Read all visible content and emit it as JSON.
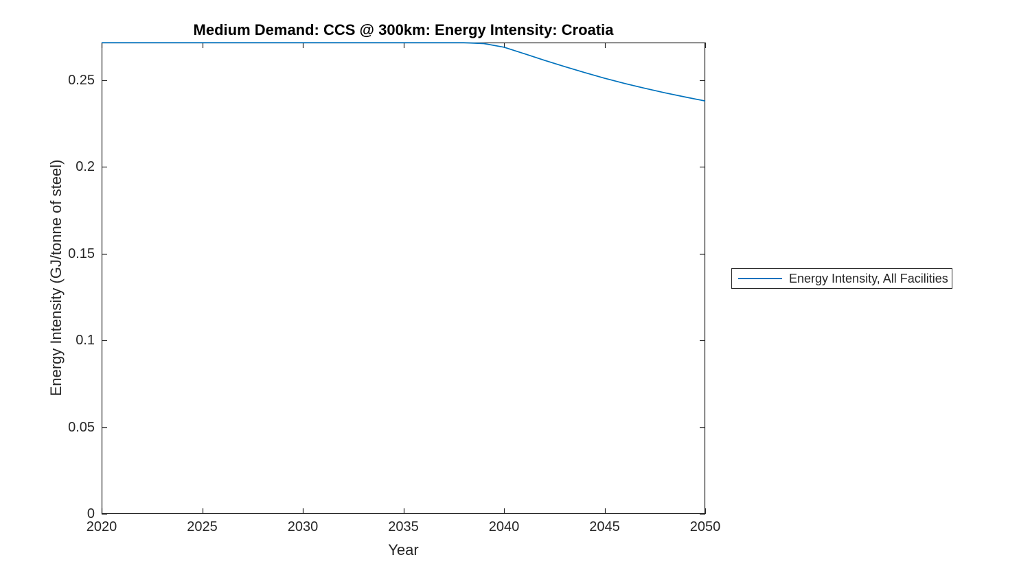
{
  "chart_data": {
    "type": "line",
    "title": "Medium Demand: CCS @ 300km: Energy Intensity: Croatia",
    "xlabel": "Year",
    "ylabel": "Energy Intensity (GJ/tonne of steel)",
    "xlim": [
      2020,
      2050
    ],
    "ylim": [
      0,
      0.2718
    ],
    "grid": false,
    "box": true,
    "tick_direction": "in",
    "xticks": [
      2020,
      2025,
      2030,
      2035,
      2040,
      2045,
      2050
    ],
    "xtick_labels": [
      "2020",
      "2025",
      "2030",
      "2035",
      "2040",
      "2045",
      "2050"
    ],
    "yticks": [
      0,
      0.05,
      0.1,
      0.15,
      0.2,
      0.25
    ],
    "ytick_labels": [
      "0",
      "0.05",
      "0.1",
      "0.15",
      "0.2",
      "0.25"
    ],
    "axis_color": "#262626",
    "legend": {
      "position": "outside-right",
      "entries": [
        {
          "label": "Energy Intensity, All Facilities",
          "color": "#0072BD"
        }
      ]
    },
    "series": [
      {
        "name": "Energy Intensity, All Facilities",
        "color": "#0072BD",
        "x": [
          2020,
          2021,
          2022,
          2023,
          2024,
          2025,
          2026,
          2027,
          2028,
          2029,
          2030,
          2031,
          2032,
          2033,
          2034,
          2035,
          2036,
          2037,
          2038,
          2039,
          2040,
          2041,
          2042,
          2043,
          2044,
          2045,
          2046,
          2047,
          2048,
          2049,
          2050
        ],
        "y": [
          0.2717,
          0.2717,
          0.2717,
          0.2717,
          0.2717,
          0.2717,
          0.2717,
          0.2717,
          0.2717,
          0.2717,
          0.2717,
          0.2717,
          0.2717,
          0.2717,
          0.2717,
          0.2717,
          0.2717,
          0.2717,
          0.2717,
          0.2712,
          0.2691,
          0.2654,
          0.2616,
          0.258,
          0.2545,
          0.2512,
          0.2482,
          0.2454,
          0.2428,
          0.2404,
          0.2381
        ]
      }
    ]
  }
}
